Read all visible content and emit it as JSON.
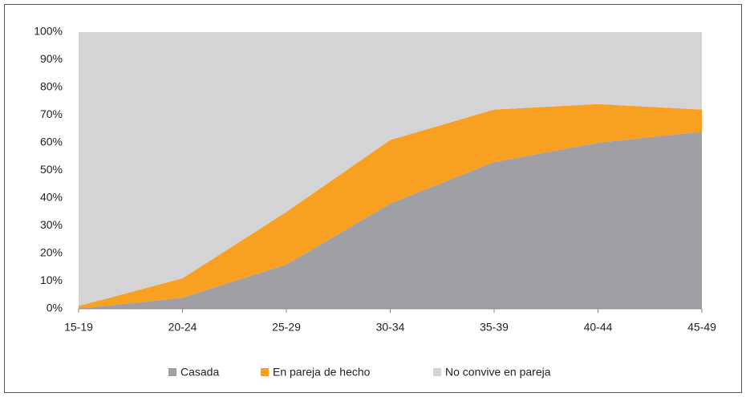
{
  "chart_data": {
    "type": "stacked_area",
    "categories": [
      "15-19",
      "20-24",
      "25-29",
      "30-34",
      "35-39",
      "40-44",
      "45-49"
    ],
    "series": [
      {
        "name": "Casada",
        "color": "#a0a0a4",
        "values": [
          0,
          4,
          16,
          38,
          53,
          60,
          64
        ]
      },
      {
        "name": "En pareja de hecho",
        "color": "#f7a021",
        "values": [
          1,
          7,
          19,
          23,
          19,
          14,
          8
        ]
      },
      {
        "name": "No convive en pareja",
        "color": "#d4d4d6",
        "values": [
          99,
          89,
          65,
          39,
          28,
          26,
          28
        ]
      }
    ],
    "ylim": [
      0,
      100
    ],
    "yticks": [
      {
        "value": 0,
        "label": "0%"
      },
      {
        "value": 10,
        "label": "10%"
      },
      {
        "value": 20,
        "label": "20%"
      },
      {
        "value": 30,
        "label": "30%"
      },
      {
        "value": 40,
        "label": "40%"
      },
      {
        "value": 50,
        "label": "50%"
      },
      {
        "value": 60,
        "label": "60%"
      },
      {
        "value": 70,
        "label": "70%"
      },
      {
        "value": 80,
        "label": "80%"
      },
      {
        "value": 90,
        "label": "90%"
      },
      {
        "value": 100,
        "label": "100%"
      }
    ],
    "legend": "bottom"
  }
}
